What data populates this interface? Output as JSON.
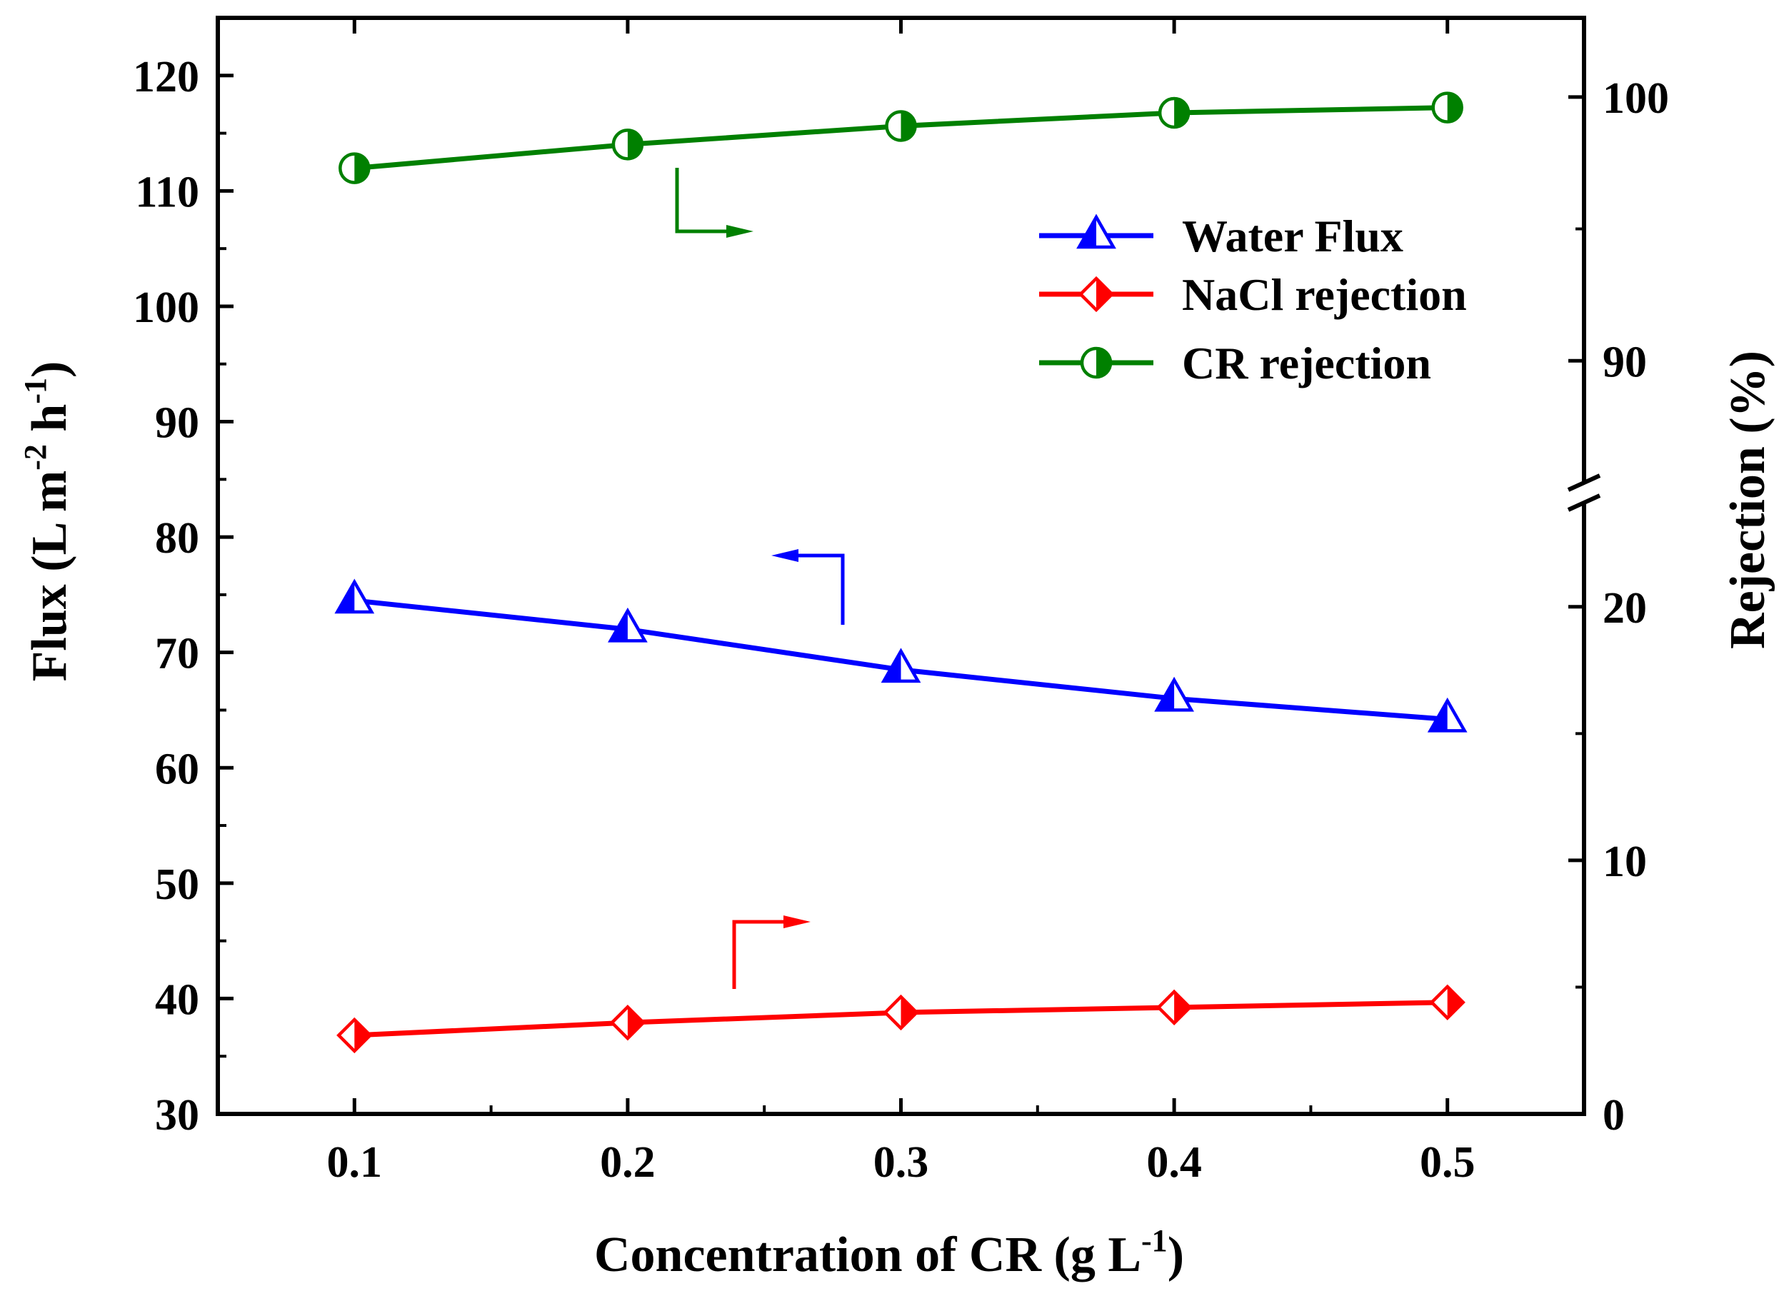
{
  "chart_data": {
    "type": "line",
    "xlabel": {
      "main": "Concentration of CR (g L",
      "sup": "-1",
      "close": ")"
    },
    "ylabel_left": {
      "parts": [
        "Flux (L m",
        " h",
        ")"
      ],
      "sups": [
        "-2",
        "-1"
      ]
    },
    "ylabel_right": "Rejection (%)",
    "x_ticks": [
      "0.1",
      "0.2",
      "0.3",
      "0.4",
      "0.5"
    ],
    "x": [
      0.1,
      0.2,
      0.3,
      0.4,
      0.5
    ],
    "xlim": [
      0.05,
      0.55
    ],
    "y_left": {
      "lim": [
        30,
        125
      ],
      "ticks": [
        "30",
        "40",
        "50",
        "60",
        "70",
        "80",
        "90",
        "100",
        "110",
        "120"
      ]
    },
    "y_right": {
      "lower_lim": [
        0,
        24.5
      ],
      "upper_lim": [
        85,
        103
      ],
      "lower_ticks": [
        "0",
        "10",
        "20"
      ],
      "upper_ticks": [
        "90",
        "100"
      ],
      "break": "axis break between 24.5 and 85"
    },
    "series": [
      {
        "name": "Water Flux",
        "axis": "left",
        "color": "#0000ff",
        "marker": "half-filled-triangle",
        "values": [
          74.5,
          72.0,
          68.5,
          66.0,
          64.2
        ]
      },
      {
        "name": "NaCl rejection",
        "axis": "right",
        "color": "#ff0000",
        "marker": "half-filled-diamond",
        "values": [
          3.1,
          3.6,
          4.0,
          4.2,
          4.4
        ]
      },
      {
        "name": "CR rejection",
        "axis": "right",
        "color": "#008000",
        "marker": "half-filled-circle",
        "values": [
          97.3,
          98.2,
          98.9,
          99.4,
          99.6
        ]
      }
    ],
    "annotations": [
      {
        "type": "arrow",
        "points_to": "right axis",
        "series": "CR rejection"
      },
      {
        "type": "arrow",
        "points_to": "left axis",
        "series": "Water Flux"
      },
      {
        "type": "arrow",
        "points_to": "right axis",
        "series": "NaCl rejection"
      }
    ],
    "legend_position": "top-right"
  }
}
